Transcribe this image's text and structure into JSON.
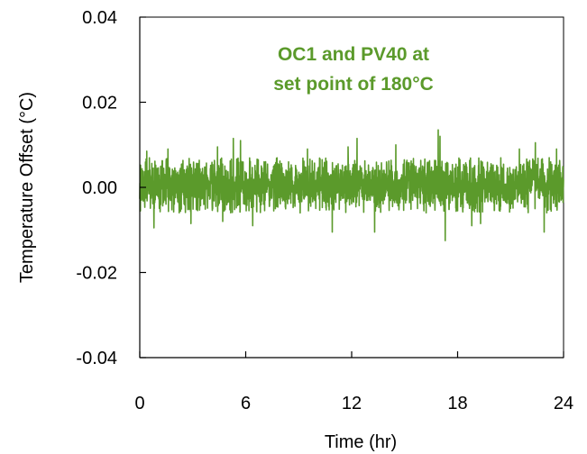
{
  "chart_data": {
    "type": "line",
    "xlabel": "Time (hr)",
    "ylabel": "Temperature Offset (°C)",
    "xlim": [
      0,
      24
    ],
    "ylim": [
      -0.04,
      0.04
    ],
    "x_ticks": [
      0,
      6,
      12,
      18,
      24
    ],
    "x_tick_labels": [
      "0",
      "6",
      "12",
      "18",
      "24"
    ],
    "y_ticks": [
      0.04,
      0.02,
      0.0,
      -0.02,
      -0.04
    ],
    "y_tick_labels": [
      "0.04",
      "0.02",
      "0.00",
      "-0.02",
      "-0.04"
    ],
    "grid": false,
    "annotation": [
      "OC1 and PV40 at",
      "set point of 180°C"
    ],
    "series": [
      {
        "color": "#5b9a2b",
        "x_start": 0,
        "x_end": 24,
        "mean": 0.0,
        "typical_range": [
          -0.006,
          0.007
        ],
        "peaks": [
          {
            "x": 0.4,
            "y": 0.0085
          },
          {
            "x": 0.8,
            "y": -0.0095
          },
          {
            "x": 1.6,
            "y": 0.009
          },
          {
            "x": 2.9,
            "y": -0.0085
          },
          {
            "x": 4.4,
            "y": 0.0095
          },
          {
            "x": 4.7,
            "y": -0.008
          },
          {
            "x": 5.3,
            "y": 0.0115
          },
          {
            "x": 5.7,
            "y": 0.011
          },
          {
            "x": 6.4,
            "y": -0.009
          },
          {
            "x": 9.5,
            "y": 0.009
          },
          {
            "x": 10.9,
            "y": -0.0105
          },
          {
            "x": 11.8,
            "y": 0.0095
          },
          {
            "x": 12.3,
            "y": 0.0115
          },
          {
            "x": 13.3,
            "y": -0.0105
          },
          {
            "x": 14.5,
            "y": 0.01
          },
          {
            "x": 16.9,
            "y": 0.0135
          },
          {
            "x": 17.0,
            "y": 0.012
          },
          {
            "x": 17.3,
            "y": -0.0125
          },
          {
            "x": 18.8,
            "y": -0.009
          },
          {
            "x": 19.3,
            "y": -0.0085
          },
          {
            "x": 21.5,
            "y": 0.009
          },
          {
            "x": 22.4,
            "y": 0.0105
          },
          {
            "x": 22.9,
            "y": -0.0105
          },
          {
            "x": 23.6,
            "y": 0.009
          }
        ]
      }
    ]
  }
}
